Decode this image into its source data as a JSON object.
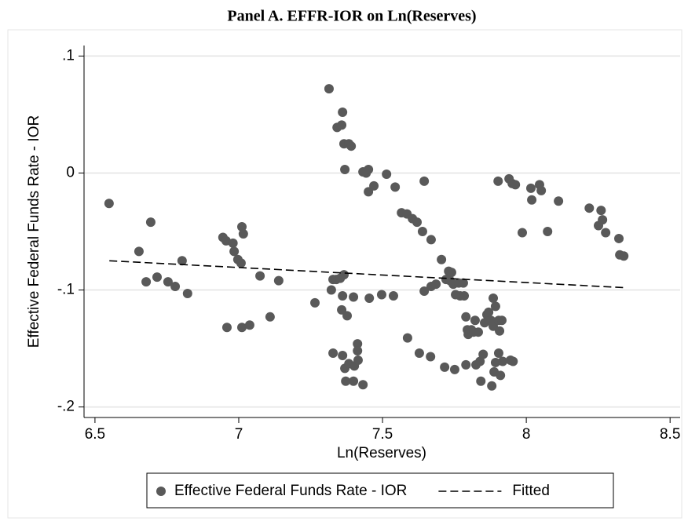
{
  "chart_data": {
    "type": "scatter",
    "title": "Panel A. EFFR-IOR on Ln(Reserves)",
    "x_label": "Ln(Reserves)",
    "y_label": "Effective Federal Funds Rate - IOR",
    "xlim": [
      6.462,
      8.535
    ],
    "ylim": [
      -0.209,
      0.109
    ],
    "xticks": [
      6.5,
      7,
      7.5,
      8,
      8.5
    ],
    "yticks": [
      {
        "value": 0.1,
        "label": ".1"
      },
      0,
      {
        "value": -0.1,
        "label": "-.1"
      },
      {
        "value": -0.2,
        "label": "-.2"
      }
    ],
    "grid": true,
    "series": [
      {
        "name": "Effective Federal Funds Rate - IOR",
        "color": "#595959",
        "marker": "circle",
        "x": [
          6.549,
          6.653,
          6.694,
          6.678,
          6.716,
          6.754,
          6.779,
          6.803,
          6.822,
          6.945,
          6.956,
          6.959,
          6.98,
          6.984,
          6.997,
          7.008,
          7.011,
          7.016,
          7.011,
          7.038,
          7.074,
          7.109,
          7.139,
          7.265,
          7.314,
          7.322,
          7.328,
          7.342,
          7.358,
          7.361,
          7.339,
          7.353,
          7.366,
          7.328,
          7.366,
          7.383,
          7.391,
          7.369,
          7.361,
          7.358,
          7.377,
          7.399,
          7.361,
          7.369,
          7.383,
          7.372,
          7.399,
          7.402,
          7.413,
          7.413,
          7.415,
          7.432,
          7.432,
          7.443,
          7.451,
          7.451,
          7.47,
          7.454,
          7.497,
          7.514,
          7.538,
          7.544,
          7.566,
          7.585,
          7.604,
          7.587,
          7.62,
          7.628,
          7.639,
          7.645,
          7.645,
          7.667,
          7.669,
          7.669,
          7.686,
          7.705,
          7.716,
          7.721,
          7.73,
          7.735,
          7.74,
          7.746,
          7.751,
          7.754,
          7.765,
          7.77,
          7.781,
          7.784,
          7.79,
          7.79,
          7.795,
          7.798,
          7.809,
          7.817,
          7.822,
          7.825,
          7.833,
          7.839,
          7.842,
          7.85,
          7.855,
          7.863,
          7.869,
          7.877,
          7.88,
          7.885,
          7.885,
          7.888,
          7.893,
          7.893,
          7.902,
          7.904,
          7.904,
          7.907,
          7.915,
          7.918,
          7.91,
          7.94,
          7.945,
          7.951,
          7.954,
          7.962,
          7.986,
          8.016,
          8.019,
          8.046,
          8.052,
          8.074,
          8.112,
          8.219,
          8.251,
          8.26,
          8.265,
          8.276,
          8.322,
          8.325,
          8.339
        ],
        "values": [
          -0.026,
          -0.067,
          -0.042,
          -0.093,
          -0.089,
          -0.093,
          -0.097,
          -0.075,
          -0.103,
          -0.055,
          -0.058,
          -0.132,
          -0.06,
          -0.067,
          -0.074,
          -0.077,
          -0.046,
          -0.052,
          -0.132,
          -0.13,
          -0.088,
          -0.123,
          -0.092,
          -0.111,
          0.072,
          -0.1,
          -0.091,
          0.039,
          0.041,
          0.052,
          -0.091,
          -0.09,
          -0.087,
          -0.154,
          0.025,
          0.025,
          0.023,
          0.003,
          -0.105,
          -0.117,
          -0.122,
          -0.106,
          -0.156,
          -0.167,
          -0.163,
          -0.178,
          -0.178,
          -0.165,
          -0.146,
          -0.152,
          -0.16,
          -0.181,
          0.001,
          0,
          0.003,
          -0.016,
          -0.011,
          -0.107,
          -0.104,
          -0.001,
          -0.105,
          -0.012,
          -0.034,
          -0.035,
          -0.039,
          -0.141,
          -0.042,
          -0.154,
          -0.05,
          -0.007,
          -0.101,
          -0.157,
          -0.057,
          -0.097,
          -0.095,
          -0.074,
          -0.166,
          -0.091,
          -0.084,
          -0.092,
          -0.085,
          -0.095,
          -0.168,
          -0.104,
          -0.094,
          -0.105,
          -0.094,
          -0.105,
          -0.123,
          -0.164,
          -0.134,
          -0.138,
          -0.134,
          -0.136,
          -0.126,
          -0.164,
          -0.136,
          -0.161,
          -0.178,
          -0.155,
          -0.128,
          -0.121,
          -0.119,
          -0.126,
          -0.182,
          -0.107,
          -0.131,
          -0.17,
          -0.114,
          -0.162,
          -0.007,
          -0.126,
          -0.154,
          -0.135,
          -0.126,
          -0.161,
          -0.173,
          -0.005,
          -0.16,
          -0.009,
          -0.161,
          -0.01,
          -0.051,
          -0.013,
          -0.023,
          -0.01,
          -0.015,
          -0.05,
          -0.024,
          -0.03,
          -0.045,
          -0.032,
          -0.04,
          -0.051,
          -0.056,
          -0.07,
          -0.071
        ]
      },
      {
        "name": "Fitted",
        "color": "#000000",
        "line": "dashed",
        "x": [
          6.55,
          8.34
        ],
        "values": [
          -0.075,
          -0.098
        ]
      }
    ]
  }
}
